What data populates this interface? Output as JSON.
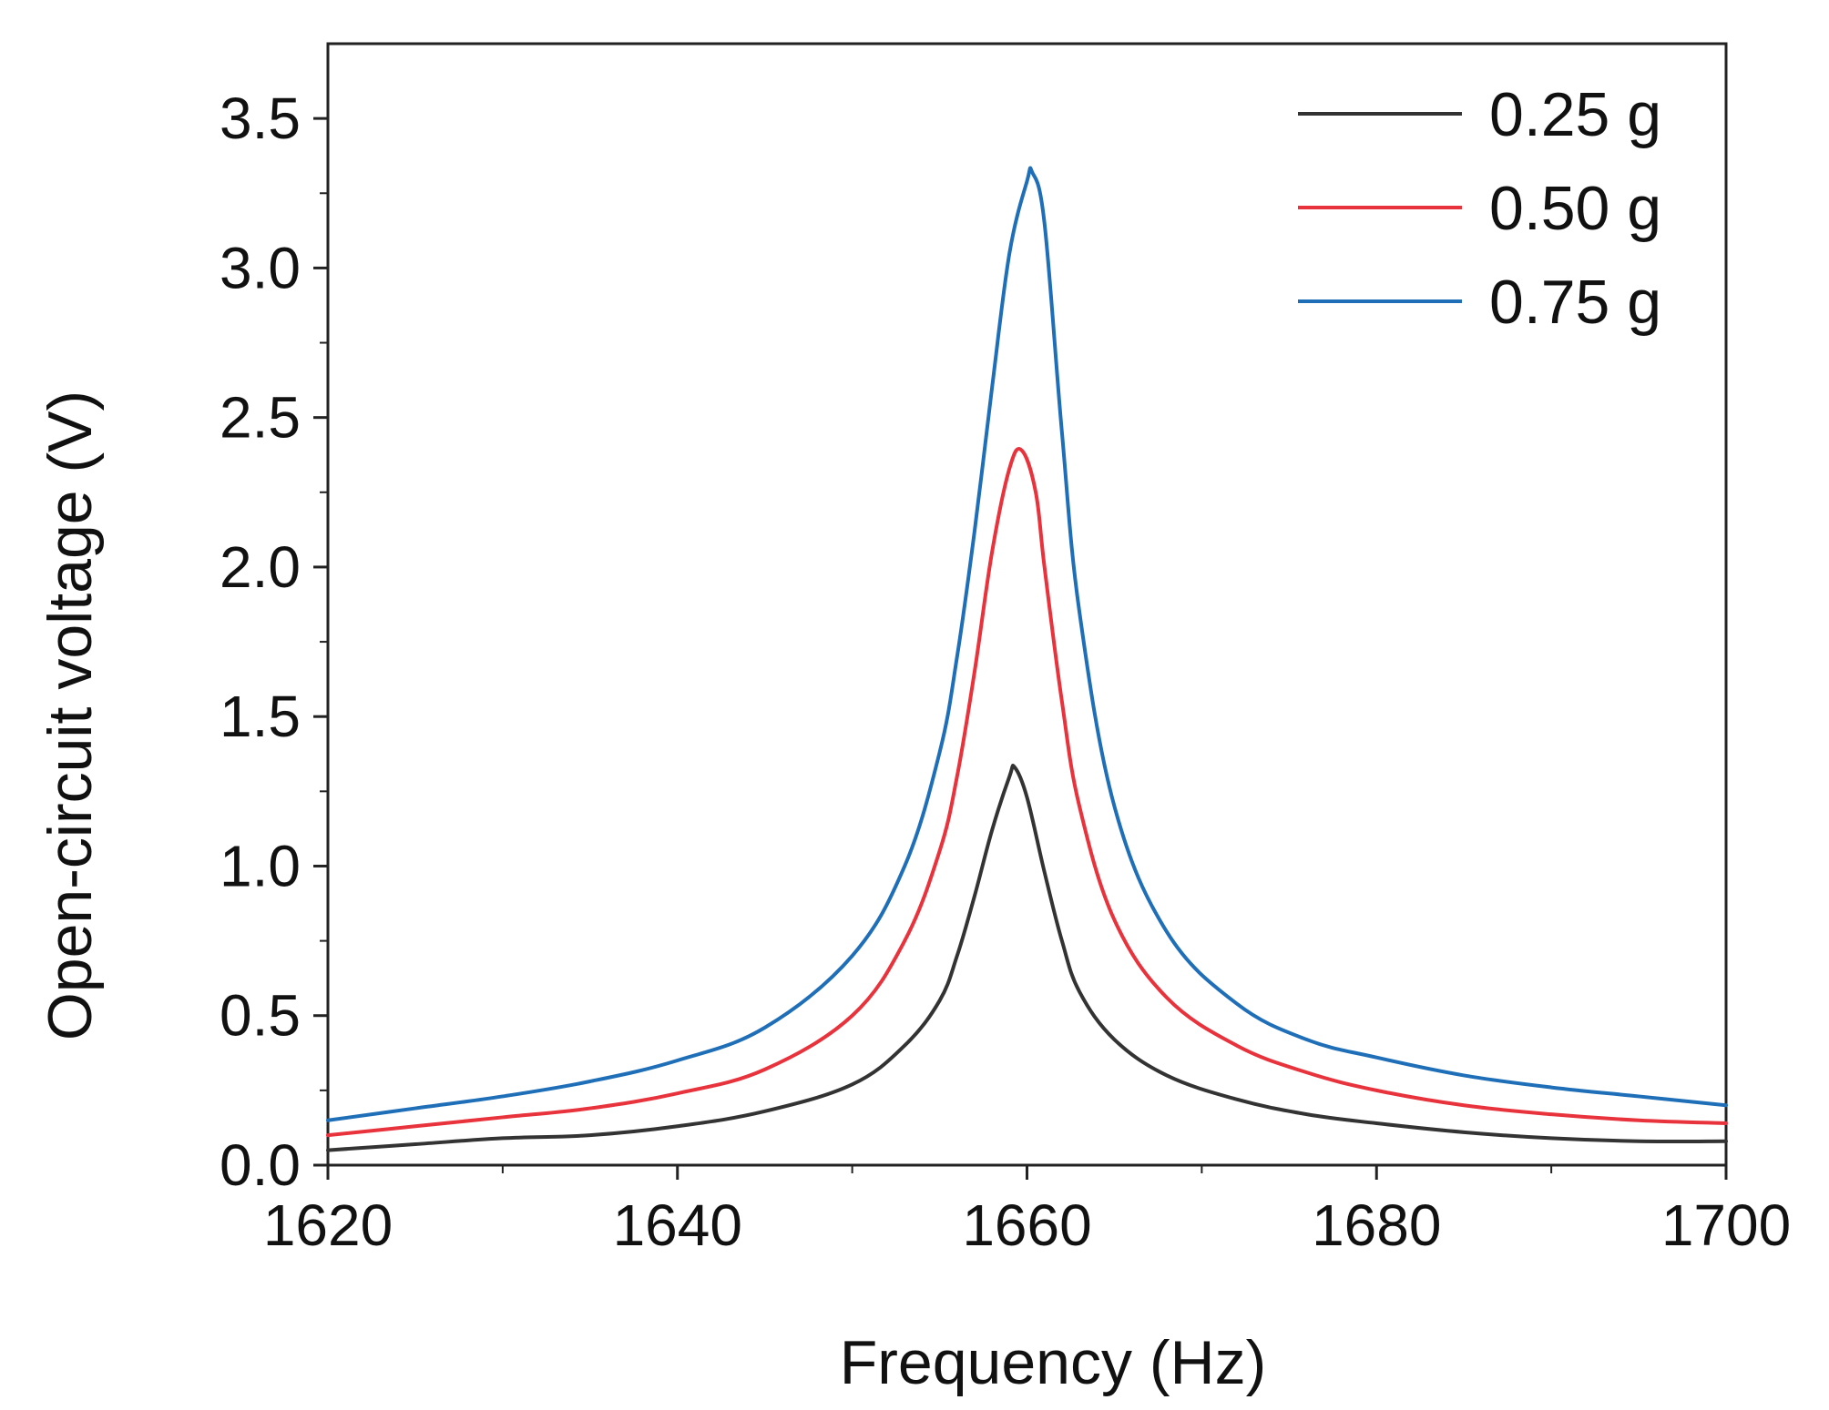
{
  "chart_data": {
    "type": "line",
    "title": "",
    "xlabel": "Frequency (Hz)",
    "ylabel": "Open-circuit voltage (V)",
    "xlim": [
      1620,
      1700
    ],
    "ylim": [
      0.0,
      3.75
    ],
    "x_ticks": [
      1620,
      1640,
      1660,
      1680,
      1700
    ],
    "x_tick_labels": [
      "1620",
      "1640",
      "1660",
      "1680",
      "1700"
    ],
    "y_ticks": [
      0.0,
      0.5,
      1.0,
      1.5,
      2.0,
      2.5,
      3.0,
      3.5
    ],
    "y_tick_labels": [
      "0.0",
      "0.5",
      "1.0",
      "1.5",
      "2.0",
      "2.5",
      "3.0",
      "3.5"
    ],
    "grid": false,
    "legend_position": "top-right",
    "series": [
      {
        "name": "0.25 g",
        "color": "#333333",
        "x": [
          1620,
          1625,
          1630,
          1635,
          1640,
          1645,
          1650,
          1653,
          1655,
          1656,
          1657,
          1658,
          1659,
          1659.3,
          1660,
          1661,
          1662,
          1663,
          1665,
          1668,
          1672,
          1676,
          1680,
          1685,
          1690,
          1695,
          1700
        ],
        "y": [
          0.05,
          0.07,
          0.09,
          0.1,
          0.13,
          0.18,
          0.27,
          0.4,
          0.55,
          0.7,
          0.9,
          1.12,
          1.3,
          1.33,
          1.23,
          0.98,
          0.75,
          0.58,
          0.42,
          0.3,
          0.22,
          0.17,
          0.14,
          0.11,
          0.09,
          0.08,
          0.08
        ]
      },
      {
        "name": "0.50 g",
        "color": "#e8323c",
        "x": [
          1620,
          1625,
          1630,
          1635,
          1640,
          1645,
          1650,
          1653,
          1655,
          1656,
          1657,
          1658,
          1659,
          1659.7,
          1660.5,
          1661,
          1662,
          1663,
          1665,
          1668,
          1672,
          1676,
          1680,
          1685,
          1690,
          1695,
          1700
        ],
        "y": [
          0.1,
          0.13,
          0.16,
          0.19,
          0.24,
          0.32,
          0.5,
          0.75,
          1.05,
          1.3,
          1.65,
          2.05,
          2.33,
          2.39,
          2.25,
          2.0,
          1.55,
          1.2,
          0.82,
          0.56,
          0.4,
          0.31,
          0.25,
          0.2,
          0.17,
          0.15,
          0.14
        ]
      },
      {
        "name": "0.75 g",
        "color": "#1f6fb8",
        "x": [
          1620,
          1625,
          1630,
          1635,
          1640,
          1645,
          1650,
          1653,
          1655,
          1656,
          1657,
          1658,
          1659,
          1660,
          1660.3,
          1661,
          1662,
          1663,
          1665,
          1668,
          1672,
          1676,
          1680,
          1685,
          1690,
          1695,
          1700
        ],
        "y": [
          0.15,
          0.19,
          0.23,
          0.28,
          0.35,
          0.46,
          0.7,
          1.0,
          1.38,
          1.7,
          2.12,
          2.6,
          3.05,
          3.29,
          3.32,
          3.15,
          2.45,
          1.85,
          1.2,
          0.78,
          0.54,
          0.42,
          0.36,
          0.3,
          0.26,
          0.23,
          0.2
        ]
      }
    ]
  }
}
